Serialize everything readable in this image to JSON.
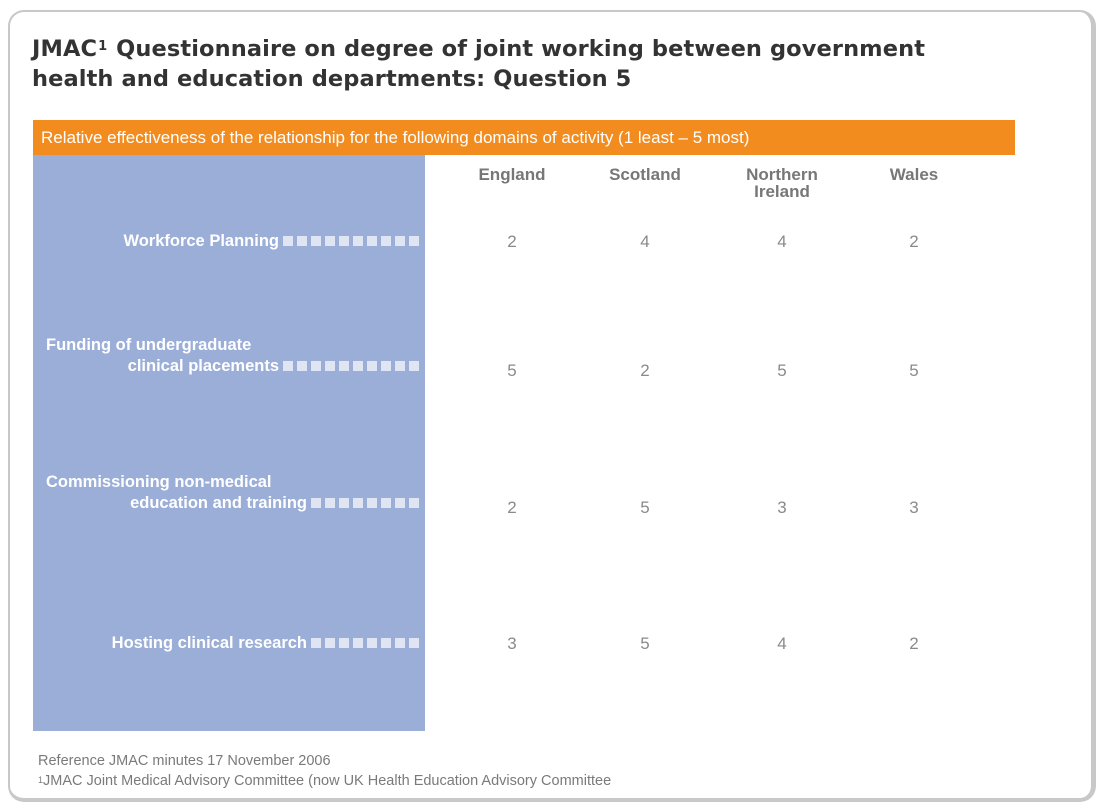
{
  "title": {
    "line1_prefix": "JMAC",
    "line1_sup": "1",
    "line1_suffix": " Questionnaire on degree of joint working between government",
    "line2": "health and education departments: Question 5"
  },
  "banner": "Relative effectiveness of the relationship for the following domains of activity (1 least – 5 most)",
  "columns": [
    {
      "line1": "England",
      "line2": ""
    },
    {
      "line1": "Scotland",
      "line2": ""
    },
    {
      "line1": "Northern",
      "line2": "Ireland"
    },
    {
      "line1": "Wales",
      "line2": ""
    }
  ],
  "rows": [
    {
      "label_line1": "",
      "label_line2": "Workforce Planning",
      "values": [
        "2",
        "4",
        "4",
        "2"
      ]
    },
    {
      "label_line1": "Funding of undergraduate",
      "label_line2": "clinical placements",
      "values": [
        "5",
        "2",
        "5",
        "5"
      ]
    },
    {
      "label_line1": "Commissioning non-medical",
      "label_line2": "education and training",
      "values": [
        "2",
        "5",
        "3",
        "3"
      ]
    },
    {
      "label_line1": "",
      "label_line2": "Hosting clinical research",
      "values": [
        "3",
        "5",
        "4",
        "2"
      ]
    }
  ],
  "footnotes": {
    "reference": "Reference JMAC minutes 17 November 2006",
    "note_sup": "1",
    "note_text": "JMAC Joint Medical Advisory Committee (now UK Health Education Advisory Committee"
  },
  "colors": {
    "banner": "#f28c1e",
    "row_column": "#9aaed8",
    "dot": "#dfe5f2",
    "title": "#333333"
  }
}
